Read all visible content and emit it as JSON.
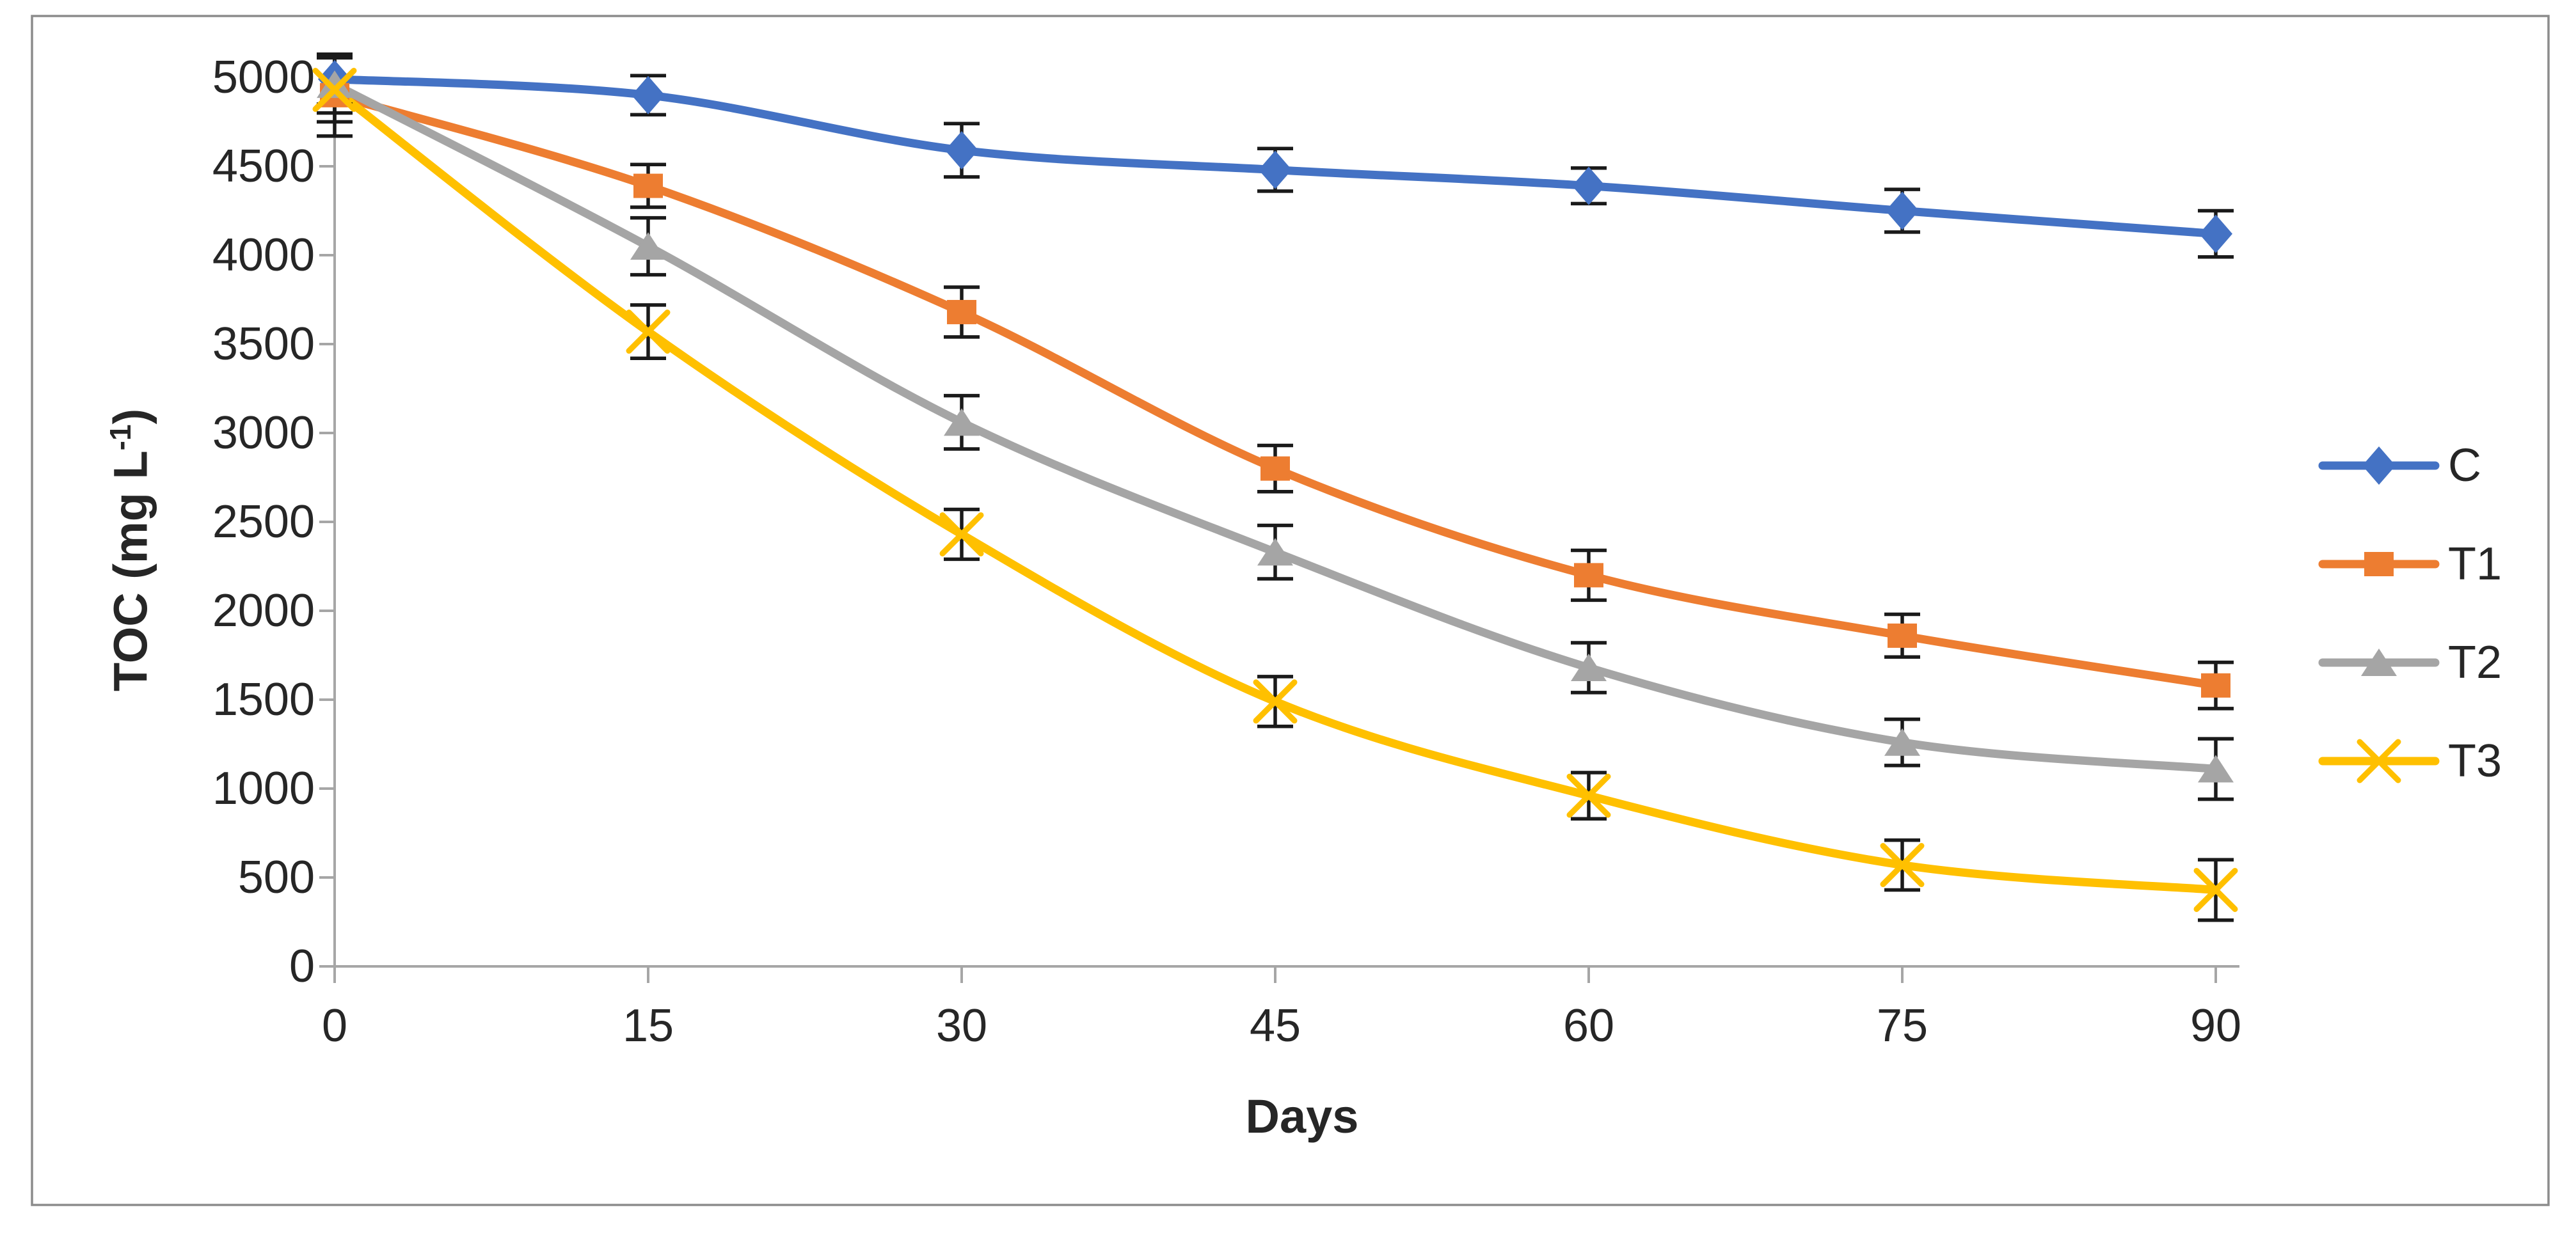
{
  "figure": {
    "xlabel": "Days",
    "ylabel_prefix": "TOC (mg L",
    "ylabel_superscript": "-1",
    "ylabel_suffix": ")"
  },
  "chart_data": {
    "type": "line",
    "title": "",
    "xlabel": "Days",
    "ylabel": "TOC (mg L-1)",
    "x": [
      0,
      15,
      30,
      45,
      60,
      75,
      90
    ],
    "xticks": [
      0,
      15,
      30,
      45,
      60,
      75,
      90
    ],
    "yticks": [
      0,
      500,
      1000,
      1500,
      2000,
      2500,
      3000,
      3500,
      4000,
      4500,
      5000
    ],
    "xlim": [
      0,
      90
    ],
    "ylim": [
      0,
      5000
    ],
    "grid": false,
    "legend_position": "right",
    "line_style": "smooth",
    "error_bars": true,
    "series": [
      {
        "name": "C",
        "color": "#4472C4",
        "marker": "diamond",
        "values": [
          4990,
          4900,
          4590,
          4480,
          4390,
          4250,
          4120
        ],
        "errors": [
          140,
          110,
          150,
          120,
          100,
          120,
          130
        ]
      },
      {
        "name": "T1",
        "color": "#ED7D31",
        "marker": "square",
        "values": [
          4900,
          4390,
          3680,
          2800,
          2200,
          1860,
          1580
        ],
        "errors": [
          230,
          120,
          140,
          130,
          140,
          120,
          130
        ]
      },
      {
        "name": "T2",
        "color": "#A5A5A5",
        "marker": "triangle",
        "values": [
          4960,
          4050,
          3060,
          2330,
          1680,
          1260,
          1110
        ],
        "errors": [
          160,
          160,
          150,
          150,
          140,
          130,
          170
        ]
      },
      {
        "name": "T3",
        "color": "#FFC000",
        "marker": "x",
        "values": [
          4930,
          3570,
          2430,
          1490,
          960,
          570,
          430
        ],
        "errors": [
          180,
          150,
          140,
          140,
          130,
          140,
          170
        ]
      }
    ],
    "colors": {
      "axis": "#A6A6A6",
      "text": "#262626",
      "error_bar": "#1A1A1A",
      "frame": "#8C8C8C",
      "background": "#FFFFFF"
    }
  }
}
